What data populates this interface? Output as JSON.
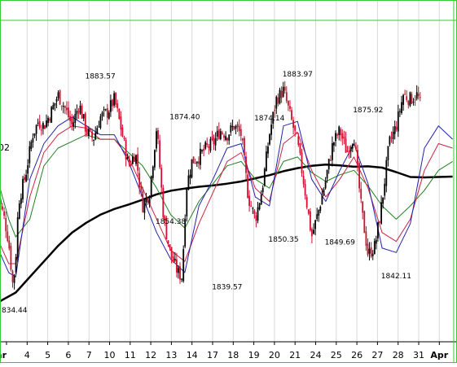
{
  "chart_data": {
    "type": "candlestick",
    "x_axis": {
      "labels": [
        "Mar",
        "4",
        "5",
        "6",
        "7",
        "10",
        "11",
        "12",
        "13",
        "14",
        "17",
        "18",
        "19",
        "20",
        "21",
        "24",
        "25",
        "26",
        "27",
        "28",
        "31",
        "Apr"
      ],
      "bold_labels": [
        "Mar",
        "Apr"
      ]
    },
    "y_axis": {
      "range": [
        1830,
        1895
      ],
      "partial_right_label": "02"
    },
    "grid": {
      "vertical": true,
      "horizontal": false
    },
    "colors": {
      "frame": "#33cc33",
      "grid": "#d8d8d8",
      "up": "#000000",
      "down": "#d01030"
    },
    "annotations": [
      {
        "text": "1883.57",
        "x": 7,
        "y": 1883.57
      },
      {
        "text": "1874.40",
        "x": 13,
        "y": 1874.4
      },
      {
        "text": "1854.38",
        "x": 12,
        "y": 1854.38
      },
      {
        "text": "1839.57",
        "x": 16,
        "y": 1839.57
      },
      {
        "text": "1874.14",
        "x": 19,
        "y": 1874.14
      },
      {
        "text": "1850.35",
        "x": 20,
        "y": 1850.35
      },
      {
        "text": "1883.97",
        "x": 21,
        "y": 1883.97
      },
      {
        "text": "1849.69",
        "x": 24,
        "y": 1849.69
      },
      {
        "text": "1875.92",
        "x": 26,
        "y": 1875.92
      },
      {
        "text": "1842.11",
        "x": 28,
        "y": 1842.11
      },
      {
        "text": "834.44",
        "x": 0,
        "y": 1834.44
      }
    ],
    "moving_averages": [
      {
        "color": "#000000",
        "width": 2.5,
        "points": [
          [
            -0.2,
            1834.4
          ],
          [
            1,
            1836.5
          ],
          [
            2,
            1840
          ],
          [
            3,
            1843.5
          ],
          [
            4,
            1847
          ],
          [
            5,
            1850
          ],
          [
            6,
            1852.2
          ],
          [
            7,
            1854
          ],
          [
            8,
            1855.3
          ],
          [
            9,
            1856.3
          ],
          [
            10,
            1857.4
          ],
          [
            11,
            1858.6
          ],
          [
            12,
            1859.4
          ],
          [
            13,
            1859.9
          ],
          [
            14,
            1860.3
          ],
          [
            15,
            1860.6
          ],
          [
            16,
            1861
          ],
          [
            17,
            1861.5
          ],
          [
            18,
            1862.2
          ],
          [
            19,
            1862.9
          ],
          [
            20,
            1863.8
          ],
          [
            21,
            1864.5
          ],
          [
            22,
            1865
          ],
          [
            23,
            1865.3
          ],
          [
            24,
            1865.1
          ],
          [
            25,
            1864.8
          ],
          [
            26,
            1864.9
          ],
          [
            27,
            1864.6
          ],
          [
            28,
            1863.6
          ],
          [
            29,
            1862.5
          ],
          [
            30,
            1862.4
          ],
          [
            31,
            1862.5
          ],
          [
            32,
            1862.6
          ]
        ]
      },
      {
        "color": "#208020",
        "width": 1,
        "points": [
          [
            -0.2,
            1861
          ],
          [
            0.5,
            1853
          ],
          [
            1,
            1849
          ],
          [
            2,
            1853
          ],
          [
            3,
            1865
          ],
          [
            4,
            1869
          ],
          [
            5,
            1870.5
          ],
          [
            6,
            1872
          ],
          [
            7,
            1871
          ],
          [
            8,
            1871
          ],
          [
            9,
            1868
          ],
          [
            10,
            1865
          ],
          [
            11,
            1860
          ],
          [
            12,
            1854
          ],
          [
            13,
            1851
          ],
          [
            14,
            1857
          ],
          [
            15,
            1861
          ],
          [
            16,
            1865
          ],
          [
            17,
            1866
          ],
          [
            18,
            1862
          ],
          [
            19,
            1860
          ],
          [
            20,
            1866
          ],
          [
            21,
            1867
          ],
          [
            22,
            1863.5
          ],
          [
            23,
            1861.5
          ],
          [
            24,
            1863
          ],
          [
            25,
            1864
          ],
          [
            26,
            1860.5
          ],
          [
            27,
            1856
          ],
          [
            28,
            1853
          ],
          [
            29,
            1856
          ],
          [
            30,
            1859.5
          ],
          [
            31,
            1864
          ],
          [
            32,
            1866
          ]
        ]
      },
      {
        "color": "#cc2244",
        "width": 1,
        "points": [
          [
            -0.2,
            1848
          ],
          [
            0.5,
            1843
          ],
          [
            1,
            1843
          ],
          [
            2,
            1858
          ],
          [
            3,
            1868
          ],
          [
            4,
            1872
          ],
          [
            5,
            1874
          ],
          [
            6,
            1873.5
          ],
          [
            7,
            1871
          ],
          [
            8,
            1871
          ],
          [
            9,
            1867
          ],
          [
            10,
            1860
          ],
          [
            11,
            1853
          ],
          [
            12,
            1846
          ],
          [
            13,
            1843.5
          ],
          [
            14,
            1852
          ],
          [
            15,
            1859
          ],
          [
            16,
            1866
          ],
          [
            17,
            1868
          ],
          [
            18,
            1860
          ],
          [
            19,
            1857
          ],
          [
            20,
            1870
          ],
          [
            21,
            1872.5
          ],
          [
            22,
            1864
          ],
          [
            23,
            1858
          ],
          [
            24,
            1862
          ],
          [
            25,
            1867
          ],
          [
            26,
            1860
          ],
          [
            27,
            1850
          ],
          [
            28,
            1848
          ],
          [
            29,
            1853
          ],
          [
            30,
            1864
          ],
          [
            31,
            1870
          ],
          [
            32,
            1869
          ]
        ]
      },
      {
        "color": "#2222aa",
        "width": 1,
        "points": [
          [
            -0.2,
            1846
          ],
          [
            0.5,
            1841
          ],
          [
            1,
            1840
          ],
          [
            2,
            1862
          ],
          [
            3,
            1870
          ],
          [
            4,
            1874
          ],
          [
            5,
            1876
          ],
          [
            6,
            1874
          ],
          [
            7,
            1872
          ],
          [
            8,
            1872
          ],
          [
            9,
            1866
          ],
          [
            10,
            1858
          ],
          [
            11,
            1850
          ],
          [
            12,
            1844
          ],
          [
            13,
            1841
          ],
          [
            14,
            1856
          ],
          [
            15,
            1862
          ],
          [
            16,
            1869
          ],
          [
            17,
            1870
          ],
          [
            18,
            1858
          ],
          [
            19,
            1856
          ],
          [
            20,
            1874
          ],
          [
            21,
            1875
          ],
          [
            22,
            1862
          ],
          [
            23,
            1857
          ],
          [
            24,
            1864
          ],
          [
            25,
            1870
          ],
          [
            26,
            1861
          ],
          [
            27,
            1846.5
          ],
          [
            28,
            1845.5
          ],
          [
            29,
            1852
          ],
          [
            30,
            1869
          ],
          [
            31,
            1874
          ],
          [
            32,
            1871
          ]
        ]
      }
    ],
    "price_path": [
      [
        -0.3,
        1859
      ],
      [
        0.2,
        1853
      ],
      [
        0.5,
        1848
      ],
      [
        0.8,
        1838
      ],
      [
        1,
        1844
      ],
      [
        1.2,
        1857
      ],
      [
        1.7,
        1863
      ],
      [
        2.2,
        1872
      ],
      [
        2.6,
        1875
      ],
      [
        3,
        1874
      ],
      [
        3.5,
        1877
      ],
      [
        4,
        1881
      ],
      [
        4.5,
        1878
      ],
      [
        5,
        1874
      ],
      [
        5.5,
        1879
      ],
      [
        6,
        1873
      ],
      [
        6.5,
        1871
      ],
      [
        7,
        1876
      ],
      [
        7.5,
        1877
      ],
      [
        8,
        1880
      ],
      [
        8.5,
        1873
      ],
      [
        9,
        1865
      ],
      [
        9.5,
        1868
      ],
      [
        10,
        1856
      ],
      [
        10.5,
        1859
      ],
      [
        11,
        1874
      ],
      [
        11.5,
        1853
      ],
      [
        12,
        1845
      ],
      [
        12.5,
        1841
      ],
      [
        12.8,
        1840
      ],
      [
        13.1,
        1860
      ],
      [
        13.5,
        1866
      ],
      [
        14,
        1867
      ],
      [
        14.5,
        1869
      ],
      [
        15,
        1870
      ],
      [
        15.5,
        1873
      ],
      [
        16,
        1872
      ],
      [
        16.5,
        1874
      ],
      [
        17,
        1872
      ],
      [
        17.5,
        1858
      ],
      [
        18,
        1853
      ],
      [
        18.5,
        1860
      ],
      [
        19,
        1872
      ],
      [
        19.5,
        1880
      ],
      [
        20,
        1882
      ],
      [
        20.5,
        1876
      ],
      [
        21,
        1870
      ],
      [
        21.5,
        1860
      ],
      [
        22,
        1849
      ],
      [
        22.5,
        1855
      ],
      [
        23,
        1862
      ],
      [
        23.5,
        1870
      ],
      [
        24,
        1873
      ],
      [
        24.5,
        1868
      ],
      [
        25,
        1872
      ],
      [
        25.5,
        1856
      ],
      [
        26,
        1845
      ],
      [
        26.5,
        1847
      ],
      [
        27,
        1857
      ],
      [
        27.5,
        1870
      ],
      [
        28,
        1874
      ],
      [
        28.5,
        1881
      ],
      [
        29,
        1880
      ],
      [
        29.5,
        1881
      ],
      [
        29.8,
        1878
      ]
    ]
  }
}
